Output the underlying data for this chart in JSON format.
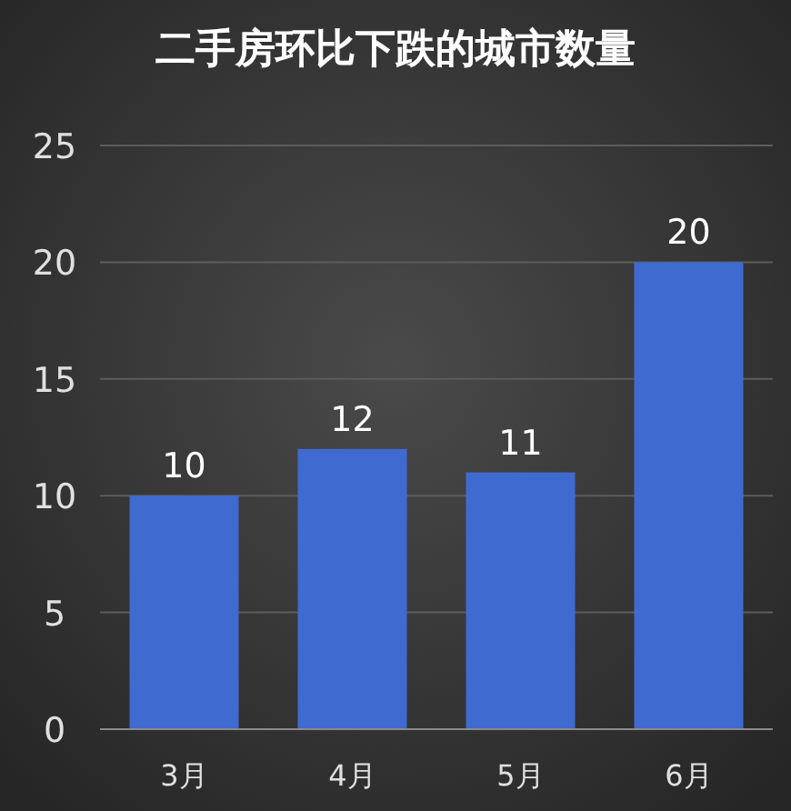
{
  "chart_data": {
    "type": "bar",
    "title": "二手房环比下跌的城市数量",
    "categories": [
      "3月",
      "4月",
      "5月",
      "6月"
    ],
    "values": [
      10,
      12,
      11,
      20
    ],
    "color": "#3f6bd0",
    "ylim": [
      0,
      25
    ],
    "yticks": [
      0,
      5,
      10,
      15,
      20,
      25
    ],
    "grid": "y",
    "data_labels": true
  }
}
